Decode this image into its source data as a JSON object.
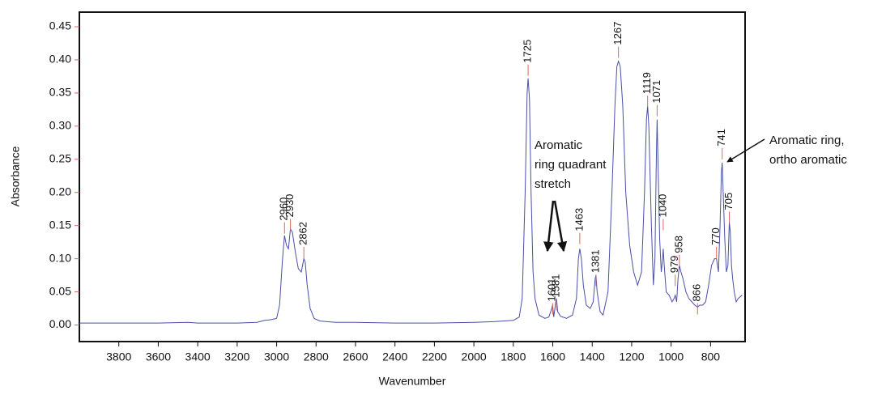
{
  "chart_data": {
    "type": "line",
    "x_label": "Wavenumber",
    "y_label": "Absorbance",
    "xlim": [
      4000,
      625
    ],
    "ylim": [
      -0.025,
      0.472
    ],
    "x_reversed": true,
    "xticks": [
      3800,
      3600,
      3400,
      3200,
      3000,
      2800,
      2600,
      2400,
      2200,
      2000,
      1800,
      1600,
      1400,
      1200,
      1000,
      800
    ],
    "yticks": [
      {
        "value": 0,
        "label": "0.00"
      },
      {
        "value": 0.05,
        "label": "0.05"
      },
      {
        "value": 0.1,
        "label": "0.10"
      },
      {
        "value": 0.15,
        "label": "0.15"
      },
      {
        "value": 0.2,
        "label": "0.20"
      },
      {
        "value": 0.25,
        "label": "0.25"
      },
      {
        "value": 0.3,
        "label": "0.30"
      },
      {
        "value": 0.35,
        "label": "0.35"
      },
      {
        "value": 0.4,
        "label": "0.40"
      },
      {
        "value": 0.45,
        "label": "0.45"
      }
    ],
    "color": "#4a4fa8",
    "peak_color": "#e0665a",
    "x": [
      4000,
      3800,
      3600,
      3450,
      3400,
      3200,
      3100,
      3060,
      3030,
      3000,
      2985,
      2970,
      2960,
      2950,
      2940,
      2930,
      2920,
      2905,
      2890,
      2875,
      2862,
      2855,
      2845,
      2830,
      2810,
      2780,
      2700,
      2600,
      2400,
      2200,
      2000,
      1900,
      1800,
      1770,
      1755,
      1740,
      1730,
      1725,
      1718,
      1710,
      1700,
      1690,
      1670,
      1640,
      1620,
      1605,
      1601,
      1595,
      1585,
      1581,
      1575,
      1560,
      1530,
      1500,
      1480,
      1470,
      1463,
      1455,
      1445,
      1430,
      1410,
      1395,
      1385,
      1381,
      1375,
      1360,
      1345,
      1320,
      1300,
      1285,
      1275,
      1267,
      1258,
      1245,
      1230,
      1210,
      1190,
      1170,
      1150,
      1135,
      1125,
      1119,
      1113,
      1100,
      1090,
      1082,
      1075,
      1071,
      1066,
      1058,
      1050,
      1043,
      1040,
      1035,
      1025,
      1010,
      995,
      985,
      979,
      972,
      965,
      958,
      950,
      940,
      925,
      910,
      895,
      880,
      866,
      855,
      840,
      825,
      810,
      795,
      780,
      770,
      760,
      752,
      745,
      741,
      736,
      728,
      720,
      712,
      705,
      700,
      694,
      688,
      680,
      670,
      660,
      640
    ],
    "values": [
      0.003,
      0.003,
      0.003,
      0.004,
      0.003,
      0.003,
      0.004,
      0.007,
      0.008,
      0.01,
      0.03,
      0.1,
      0.135,
      0.12,
      0.115,
      0.145,
      0.14,
      0.11,
      0.085,
      0.08,
      0.1,
      0.095,
      0.06,
      0.025,
      0.01,
      0.006,
      0.004,
      0.004,
      0.003,
      0.003,
      0.004,
      0.005,
      0.007,
      0.012,
      0.04,
      0.2,
      0.35,
      0.372,
      0.34,
      0.2,
      0.08,
      0.04,
      0.015,
      0.01,
      0.012,
      0.025,
      0.03,
      0.012,
      0.035,
      0.04,
      0.02,
      0.013,
      0.01,
      0.015,
      0.04,
      0.1,
      0.115,
      0.1,
      0.06,
      0.03,
      0.025,
      0.035,
      0.07,
      0.075,
      0.05,
      0.02,
      0.015,
      0.05,
      0.2,
      0.33,
      0.39,
      0.398,
      0.39,
      0.33,
      0.2,
      0.12,
      0.08,
      0.06,
      0.08,
      0.2,
      0.31,
      0.33,
      0.3,
      0.15,
      0.06,
      0.1,
      0.25,
      0.31,
      0.24,
      0.13,
      0.08,
      0.1,
      0.115,
      0.09,
      0.05,
      0.045,
      0.035,
      0.04,
      0.045,
      0.035,
      0.07,
      0.09,
      0.08,
      0.07,
      0.05,
      0.04,
      0.035,
      0.03,
      0.027,
      0.03,
      0.03,
      0.035,
      0.06,
      0.09,
      0.1,
      0.1,
      0.08,
      0.15,
      0.23,
      0.245,
      0.2,
      0.13,
      0.08,
      0.09,
      0.155,
      0.14,
      0.09,
      0.07,
      0.05,
      0.035,
      0.04,
      0.045
    ],
    "peaks": [
      {
        "x": 2960,
        "y": 0.155
      },
      {
        "x": 2930,
        "y": 0.16
      },
      {
        "x": 2862,
        "y": 0.118
      },
      {
        "x": 1725,
        "y": 0.393
      },
      {
        "x": 1601,
        "y": 0.033
      },
      {
        "x": 1581,
        "y": 0.039
      },
      {
        "x": 1463,
        "y": 0.139
      },
      {
        "x": 1381,
        "y": 0.076
      },
      {
        "x": 1267,
        "y": 0.42
      },
      {
        "x": 1119,
        "y": 0.346
      },
      {
        "x": 1071,
        "y": 0.332
      },
      {
        "x": 1040,
        "y": 0.16
      },
      {
        "x": 979,
        "y": 0.076
      },
      {
        "x": 958,
        "y": 0.106
      },
      {
        "x": 866,
        "y": 0.033
      },
      {
        "x": 770,
        "y": 0.118
      },
      {
        "x": 741,
        "y": 0.267
      },
      {
        "x": 705,
        "y": 0.171
      }
    ],
    "annotations": [
      {
        "text": [
          "Aromatic",
          "ring quadrant",
          "stretch"
        ]
      },
      {
        "text": [
          "Aromatic ring,",
          "ortho aromatic"
        ]
      }
    ]
  }
}
